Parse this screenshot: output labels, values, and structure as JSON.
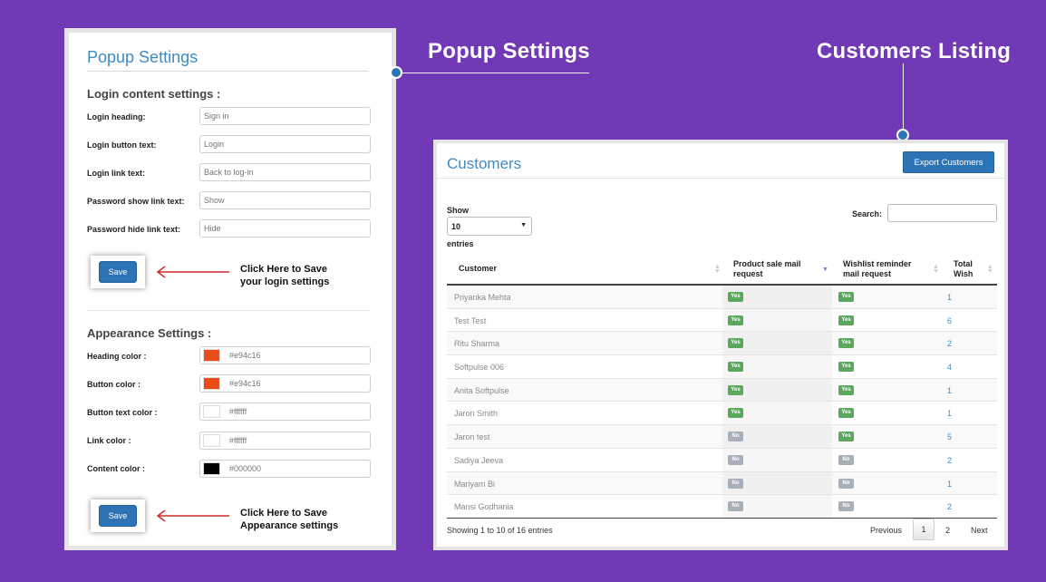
{
  "callouts": {
    "popup_settings": "Popup Settings",
    "customers_listing": "Customers Listing"
  },
  "popup": {
    "title": "Popup Settings",
    "login_section_title": "Login content settings :",
    "login_fields": [
      {
        "label": "Login heading:",
        "placeholder": "Sign in"
      },
      {
        "label": "Login button text:",
        "placeholder": "Login"
      },
      {
        "label": "Login link text:",
        "placeholder": "Back to log-in"
      },
      {
        "label": "Password show link text:",
        "placeholder": "Show"
      },
      {
        "label": "Password hide link text:",
        "placeholder": "Hide"
      }
    ],
    "save_label": "Save",
    "login_hint_line1": "Click Here to Save",
    "login_hint_line2": "your login settings",
    "appearance_section_title": "Appearance Settings :",
    "appearance_fields": [
      {
        "label": "Heading color :",
        "value": "#e94c16",
        "swatch": "#e94c16"
      },
      {
        "label": "Button color :",
        "value": "#e94c16",
        "swatch": "#e94c16"
      },
      {
        "label": "Button text color :",
        "value": "#ffffff",
        "swatch": "#ffffff"
      },
      {
        "label": "Link color :",
        "value": "#ffffff",
        "swatch": "#ffffff"
      },
      {
        "label": "Content color :",
        "value": "#000000",
        "swatch": "#000000"
      }
    ],
    "appearance_hint_line1": "Click Here to Save",
    "appearance_hint_line2": "Appearance settings"
  },
  "customers": {
    "title": "Customers",
    "export_label": "Export Customers",
    "show_label": "Show",
    "entries_value": "10",
    "entries_label": "entries",
    "search_label": "Search:",
    "columns": {
      "customer": "Customer",
      "sale_1": "Product sale mail",
      "sale_2": "request",
      "wish_1": "Wishlist reminder",
      "wish_2": "mail request",
      "total_1": "Total",
      "total_2": "Wish"
    },
    "rows": [
      {
        "name": "Priyanka Mehta",
        "sale": "Yes",
        "wish": "Yes",
        "total": "1"
      },
      {
        "name": "Test Test",
        "sale": "Yes",
        "wish": "Yes",
        "total": "6"
      },
      {
        "name": "Ritu Sharma",
        "sale": "Yes",
        "wish": "Yes",
        "total": "2"
      },
      {
        "name": "Softpulse 006",
        "sale": "Yes",
        "wish": "Yes",
        "total": "4"
      },
      {
        "name": "Anita Softpulse",
        "sale": "Yes",
        "wish": "Yes",
        "total": "1"
      },
      {
        "name": "Jaron Smith",
        "sale": "Yes",
        "wish": "Yes",
        "total": "1"
      },
      {
        "name": "Jaron test",
        "sale": "No",
        "wish": "Yes",
        "total": "5"
      },
      {
        "name": "Sadiya Jeeva",
        "sale": "No",
        "wish": "No",
        "total": "2"
      },
      {
        "name": "Mariyam Bi",
        "sale": "No",
        "wish": "No",
        "total": "1"
      },
      {
        "name": "Mansi Godhania",
        "sale": "No",
        "wish": "No",
        "total": "2"
      }
    ],
    "showing_text": "Showing 1 to 10 of 16 entries",
    "pagination": {
      "previous": "Previous",
      "current": "1",
      "next_page": "2",
      "next": "Next"
    }
  },
  "colors": {
    "background": "#7239b6",
    "accent": "#2d74b6",
    "title_blue": "#3d8cc5",
    "yes_badge": "#5aa85c",
    "no_badge": "#a7b0ba",
    "arrow_red": "#d42a2a"
  },
  "icons": [
    "arrow-left-icon",
    "sort-icon",
    "sort-desc-icon",
    "chevron-down-icon"
  ]
}
